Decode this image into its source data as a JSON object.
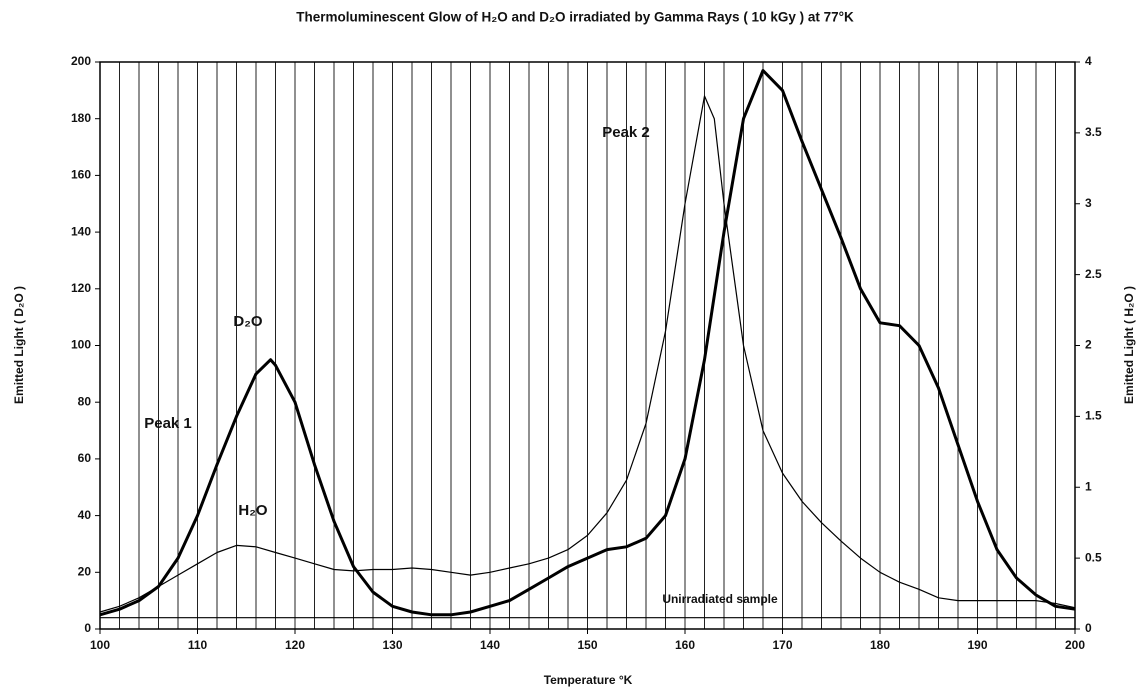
{
  "chart_data": {
    "type": "line",
    "title": "Thermoluminescent Glow of H₂O and D₂O irradiated by Gamma Rays ( 10 kGy ) at 77°K",
    "xlabel": "Temperature °K",
    "ylabel": "Emitted Light ( D₂O )",
    "y2label": "Emitted Light ( H₂O )",
    "xlim": [
      100,
      200
    ],
    "xticks": [
      100,
      110,
      120,
      130,
      140,
      150,
      160,
      170,
      180,
      190,
      200
    ],
    "xgrid": [
      100,
      102,
      104,
      106,
      108,
      110,
      112,
      114,
      116,
      118,
      120,
      122,
      124,
      126,
      128,
      130,
      132,
      134,
      136,
      138,
      140,
      142,
      144,
      146,
      148,
      150,
      152,
      154,
      156,
      158,
      160,
      162,
      164,
      166,
      168,
      170,
      172,
      174,
      176,
      178,
      180,
      182,
      184,
      186,
      188,
      190,
      192,
      194,
      196,
      198,
      200
    ],
    "ylim": [
      0,
      200
    ],
    "yticks": [
      0,
      20,
      40,
      60,
      80,
      100,
      120,
      140,
      160,
      180,
      200
    ],
    "y2lim": [
      0,
      4
    ],
    "y2ticks": [
      0,
      0.5,
      1,
      1.5,
      2,
      2.5,
      3,
      3.5,
      4
    ],
    "annotations": [
      "Peak 1",
      "Peak 2"
    ],
    "series": [
      {
        "name": "D₂O",
        "color": "#000000",
        "axis": "y",
        "x": [
          100,
          102,
          104,
          106,
          108,
          110,
          112,
          114,
          116,
          117.5,
          118,
          120,
          122,
          124,
          126,
          128,
          130,
          132,
          134,
          136,
          138,
          140,
          142,
          144,
          146,
          148,
          150,
          152,
          154,
          156,
          158,
          160,
          162,
          164,
          166,
          168,
          170,
          172,
          174,
          176,
          178,
          180,
          182,
          184,
          186,
          188,
          190,
          192,
          194,
          196,
          198,
          200
        ],
        "values": [
          5,
          7,
          10,
          15,
          25,
          40,
          58,
          75,
          90,
          95,
          93,
          80,
          58,
          38,
          22,
          13,
          8,
          6,
          5,
          5,
          6,
          8,
          10,
          14,
          18,
          22,
          25,
          28,
          29,
          32,
          40,
          60,
          95,
          140,
          180,
          197,
          190,
          172,
          155,
          138,
          120,
          108,
          107,
          100,
          85,
          65,
          45,
          28,
          18,
          12,
          8,
          7
        ]
      },
      {
        "name": "H₂O",
        "color": "#000000",
        "axis": "y2",
        "x": [
          100,
          102,
          104,
          106,
          108,
          110,
          112,
          114,
          116,
          118,
          120,
          122,
          124,
          126,
          128,
          130,
          132,
          134,
          136,
          138,
          140,
          142,
          144,
          146,
          148,
          150,
          152,
          154,
          156,
          158,
          160,
          162,
          163,
          164,
          166,
          168,
          170,
          172,
          174,
          176,
          178,
          180,
          182,
          184,
          186,
          188,
          190,
          192,
          194,
          196,
          198,
          200
        ],
        "values": [
          0.12,
          0.16,
          0.22,
          0.3,
          0.38,
          0.46,
          0.54,
          0.59,
          0.58,
          0.54,
          0.5,
          0.46,
          0.42,
          0.41,
          0.42,
          0.42,
          0.43,
          0.42,
          0.4,
          0.38,
          0.4,
          0.43,
          0.46,
          0.5,
          0.56,
          0.66,
          0.82,
          1.05,
          1.45,
          2.1,
          3.0,
          3.76,
          3.6,
          3.0,
          2.0,
          1.4,
          1.1,
          0.9,
          0.75,
          0.62,
          0.5,
          0.4,
          0.33,
          0.28,
          0.22,
          0.2,
          0.2,
          0.2,
          0.2,
          0.2,
          0.18,
          0.15
        ]
      },
      {
        "name": "Unirradiated sample",
        "color": "#000000",
        "axis": "y",
        "x": [
          100,
          200
        ],
        "values": [
          4,
          4
        ]
      }
    ]
  }
}
